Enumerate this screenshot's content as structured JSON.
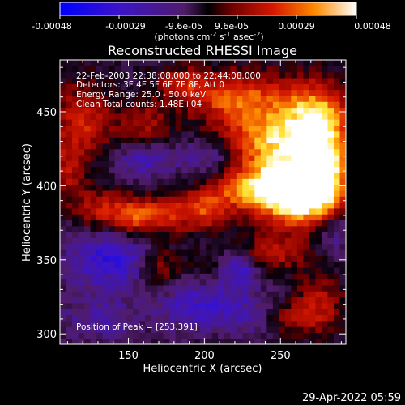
{
  "chart_data": {
    "type": "heatmap",
    "title": "Reconstructed RHESSI Image",
    "xlabel": "Heliocentric X (arcsec)",
    "ylabel": "Heliocentric Y (arcsec)",
    "xlim": [
      105,
      293
    ],
    "ylim": [
      293,
      485
    ],
    "x_ticks": [
      150,
      200,
      250
    ],
    "y_ticks": [
      300,
      350,
      400,
      450
    ],
    "colorbar": {
      "range": [
        -0.00048,
        0.00048
      ],
      "ticks": [
        "-0.00048",
        "-0.00029",
        "-9.6e-05",
        "9.6e-05",
        "0.00029",
        "0.00048"
      ],
      "label_prefix": "(photons cm",
      "label_exp1": "-2",
      "label_mid": " s",
      "label_exp2": "-1",
      "label_mid2": " asec",
      "label_exp3": "-2",
      "label_suffix": ")"
    },
    "annotations": [
      "22-Feb-2003 22:38:08.000 to 22:44:08.000",
      "Detectors: 3F 4F 5F 6F 7F 8F, Att 0",
      "Energy Range: 25.0 - 50.0 keV",
      "Clean      Total counts: 1.48E+04"
    ],
    "peak_label": "Position of Peak = [253,391]",
    "peak": [
      253,
      391
    ],
    "grid": false,
    "blobs": [
      {
        "x": 253,
        "y": 395,
        "amp": 1.0,
        "sx": 18,
        "sy": 14
      },
      {
        "x": 270,
        "y": 400,
        "amp": 0.85,
        "sx": 16,
        "sy": 18
      },
      {
        "x": 240,
        "y": 430,
        "amp": 0.8,
        "sx": 22,
        "sy": 14
      },
      {
        "x": 270,
        "y": 450,
        "amp": 0.75,
        "sx": 18,
        "sy": 16
      },
      {
        "x": 220,
        "y": 460,
        "amp": 0.7,
        "sx": 22,
        "sy": 12
      },
      {
        "x": 280,
        "y": 420,
        "amp": 0.7,
        "sx": 12,
        "sy": 22
      },
      {
        "x": 225,
        "y": 400,
        "amp": 0.6,
        "sx": 14,
        "sy": 10
      },
      {
        "x": 200,
        "y": 385,
        "amp": 0.6,
        "sx": 12,
        "sy": 10
      },
      {
        "x": 170,
        "y": 380,
        "amp": 0.55,
        "sx": 14,
        "sy": 10
      },
      {
        "x": 150,
        "y": 380,
        "amp": 0.5,
        "sx": 10,
        "sy": 9
      },
      {
        "x": 130,
        "y": 385,
        "amp": 0.45,
        "sx": 10,
        "sy": 10
      },
      {
        "x": 120,
        "y": 445,
        "amp": 0.55,
        "sx": 12,
        "sy": 18
      },
      {
        "x": 160,
        "y": 440,
        "amp": 0.45,
        "sx": 14,
        "sy": 12
      },
      {
        "x": 110,
        "y": 410,
        "amp": 0.4,
        "sx": 8,
        "sy": 16
      },
      {
        "x": 185,
        "y": 470,
        "amp": 0.4,
        "sx": 12,
        "sy": 8
      },
      {
        "x": 170,
        "y": 345,
        "amp": 0.5,
        "sx": 10,
        "sy": 10
      },
      {
        "x": 245,
        "y": 355,
        "amp": 0.45,
        "sx": 16,
        "sy": 8
      },
      {
        "x": 210,
        "y": 345,
        "amp": 0.35,
        "sx": 12,
        "sy": 8
      },
      {
        "x": 275,
        "y": 320,
        "amp": 0.45,
        "sx": 12,
        "sy": 14
      },
      {
        "x": 250,
        "y": 310,
        "amp": 0.35,
        "sx": 14,
        "sy": 8
      },
      {
        "x": 140,
        "y": 350,
        "amp": -0.55,
        "sx": 22,
        "sy": 14
      },
      {
        "x": 220,
        "y": 345,
        "amp": -0.7,
        "sx": 10,
        "sy": 8
      },
      {
        "x": 200,
        "y": 320,
        "amp": -0.45,
        "sx": 22,
        "sy": 12
      },
      {
        "x": 160,
        "y": 420,
        "amp": -0.45,
        "sx": 14,
        "sy": 10
      },
      {
        "x": 205,
        "y": 420,
        "amp": -0.4,
        "sx": 14,
        "sy": 10
      },
      {
        "x": 130,
        "y": 310,
        "amp": -0.3,
        "sx": 18,
        "sy": 10
      },
      {
        "x": 285,
        "y": 370,
        "amp": -0.35,
        "sx": 10,
        "sy": 10
      },
      {
        "x": 235,
        "y": 310,
        "amp": -0.3,
        "sx": 12,
        "sy": 10
      }
    ]
  },
  "footer": {
    "timestamp": "29-Apr-2022 05:59"
  }
}
